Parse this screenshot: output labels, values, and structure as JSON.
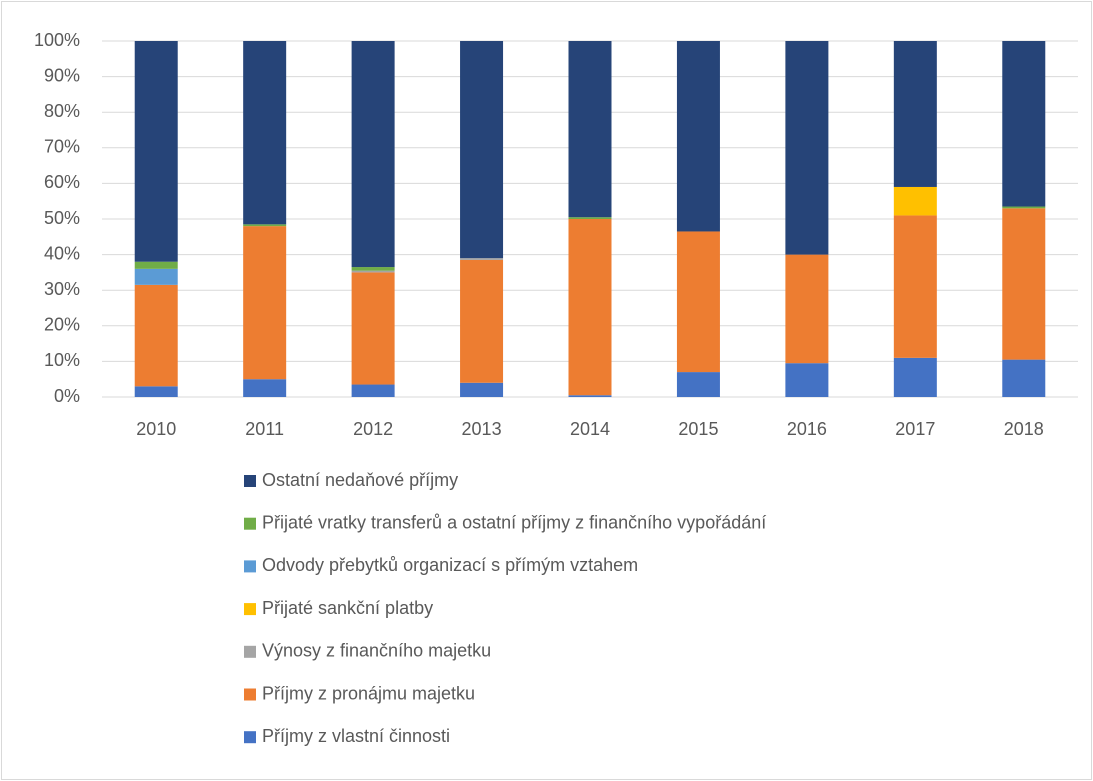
{
  "chart_data": {
    "type": "stacked_bar_100",
    "categories": [
      "2010",
      "2011",
      "2012",
      "2013",
      "2014",
      "2015",
      "2016",
      "2017",
      "2018"
    ],
    "series": [
      {
        "name": "Příjmy z vlastní činnosti",
        "color": "#4472c4",
        "values": [
          3,
          5,
          3.5,
          4,
          0.5,
          7,
          9.5,
          11,
          10.5
        ]
      },
      {
        "name": "Příjmy z pronájmu majetku",
        "color": "#ed7d31",
        "values": [
          28.5,
          43,
          31.5,
          34.5,
          49.5,
          39.5,
          30.5,
          40,
          42.5
        ]
      },
      {
        "name": "Výnosy z finančního majetku",
        "color": "#a5a5a5",
        "values": [
          0,
          0,
          0.5,
          0.5,
          0,
          0,
          0,
          0,
          0
        ]
      },
      {
        "name": "Přijaté sankční platby",
        "color": "#ffc000",
        "values": [
          0,
          0,
          0,
          0,
          0,
          0,
          0,
          8,
          0
        ]
      },
      {
        "name": "Odvody přebytků organizací s přímým vztahem",
        "color": "#5b9bd5",
        "values": [
          4.5,
          0,
          0,
          0,
          0,
          0,
          0,
          0,
          0
        ]
      },
      {
        "name": "Přijaté vratky transferů a ostatní příjmy z finančního vypořádání",
        "color": "#70ad47",
        "values": [
          2,
          0.5,
          1,
          0,
          0.5,
          0,
          0,
          0,
          0.5
        ]
      },
      {
        "name": "Ostatní nedaňové příjmy",
        "color": "#264478",
        "values": [
          62,
          51.5,
          63.5,
          61,
          49.5,
          53.5,
          60,
          41,
          46.5
        ]
      }
    ],
    "ylim": [
      0,
      100
    ],
    "yticks": [
      {
        "value": 0,
        "label": "0%"
      },
      {
        "value": 10,
        "label": "10%"
      },
      {
        "value": 20,
        "label": "20%"
      },
      {
        "value": 30,
        "label": "30%"
      },
      {
        "value": 40,
        "label": "40%"
      },
      {
        "value": 50,
        "label": "50%"
      },
      {
        "value": 60,
        "label": "60%"
      },
      {
        "value": 70,
        "label": "70%"
      },
      {
        "value": 80,
        "label": "80%"
      },
      {
        "value": 90,
        "label": "90%"
      },
      {
        "value": 100,
        "label": "100%"
      }
    ],
    "grid": true
  }
}
